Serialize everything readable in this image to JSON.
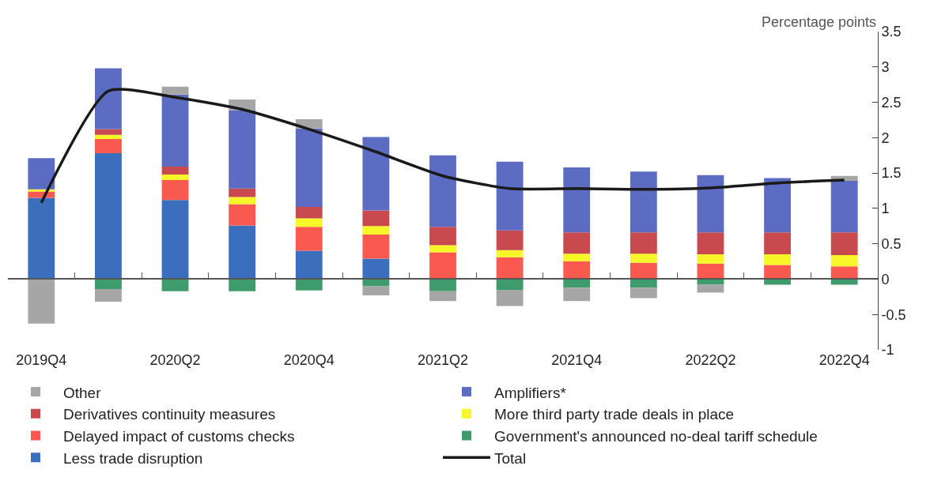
{
  "chart_data": {
    "type": "bar",
    "stacked": true,
    "ylabel": "Percentage points",
    "categories": [
      "2019Q4",
      null,
      "2020Q2",
      null,
      "2020Q4",
      null,
      "2021Q2",
      null,
      "2021Q4",
      null,
      "2022Q2",
      null,
      "2022Q4"
    ],
    "ylim": [
      -1,
      3.5
    ],
    "yticks": [
      -1,
      -0.5,
      0,
      0.5,
      1,
      1.5,
      2,
      2.5,
      3,
      3.5
    ],
    "legend": "bottom",
    "ref_lines": [
      {
        "axis": "y",
        "value": 0,
        "color": "#555555"
      }
    ],
    "series": [
      {
        "name": "Less trade disruption",
        "color": "#3b6fbe",
        "values": [
          1.15,
          1.78,
          1.12,
          0.76,
          0.4,
          0.29,
          0,
          0,
          0,
          0,
          0,
          0,
          0
        ]
      },
      {
        "name": "Delayed impact of customs checks",
        "color": "#f9594f",
        "values": [
          0.09,
          0.2,
          0.28,
          0.3,
          0.34,
          0.34,
          0.38,
          0.31,
          0.25,
          0.23,
          0.22,
          0.2,
          0.18
        ]
      },
      {
        "name": "More third party trade deals in place",
        "color": "#f6f629",
        "values": [
          0.03,
          0.06,
          0.08,
          0.1,
          0.12,
          0.12,
          0.1,
          0.1,
          0.11,
          0.13,
          0.13,
          0.15,
          0.16
        ]
      },
      {
        "name": "Derivatives continuity measures",
        "color": "#c94a4e",
        "values": [
          0,
          0.08,
          0.11,
          0.12,
          0.16,
          0.22,
          0.26,
          0.28,
          0.3,
          0.3,
          0.31,
          0.31,
          0.32
        ]
      },
      {
        "name": "Amplifiers*",
        "color": "#5c6cc2",
        "values": [
          0.44,
          0.86,
          1.02,
          1.11,
          1.11,
          1.04,
          1.01,
          0.97,
          0.92,
          0.86,
          0.81,
          0.77,
          0.73
        ]
      },
      {
        "name": "Government's announced no-deal tariff schedule",
        "color": "#3f9a6c",
        "values": [
          0,
          -0.14,
          -0.17,
          -0.17,
          -0.16,
          -0.1,
          -0.17,
          -0.15,
          -0.12,
          -0.12,
          -0.08,
          -0.08,
          -0.08
        ]
      },
      {
        "name": "Other",
        "color": "#a6a6a6",
        "values": [
          -0.63,
          -0.18,
          0.11,
          0.15,
          0.13,
          -0.13,
          -0.14,
          -0.23,
          -0.19,
          -0.15,
          -0.11,
          0,
          0.07
        ]
      },
      {
        "name": "Total",
        "type": "line",
        "color": "#1a1a1a",
        "values": [
          1.08,
          2.66,
          2.57,
          2.4,
          2.12,
          1.8,
          1.46,
          1.28,
          1.28,
          1.27,
          1.29,
          1.36,
          1.4
        ]
      }
    ]
  }
}
